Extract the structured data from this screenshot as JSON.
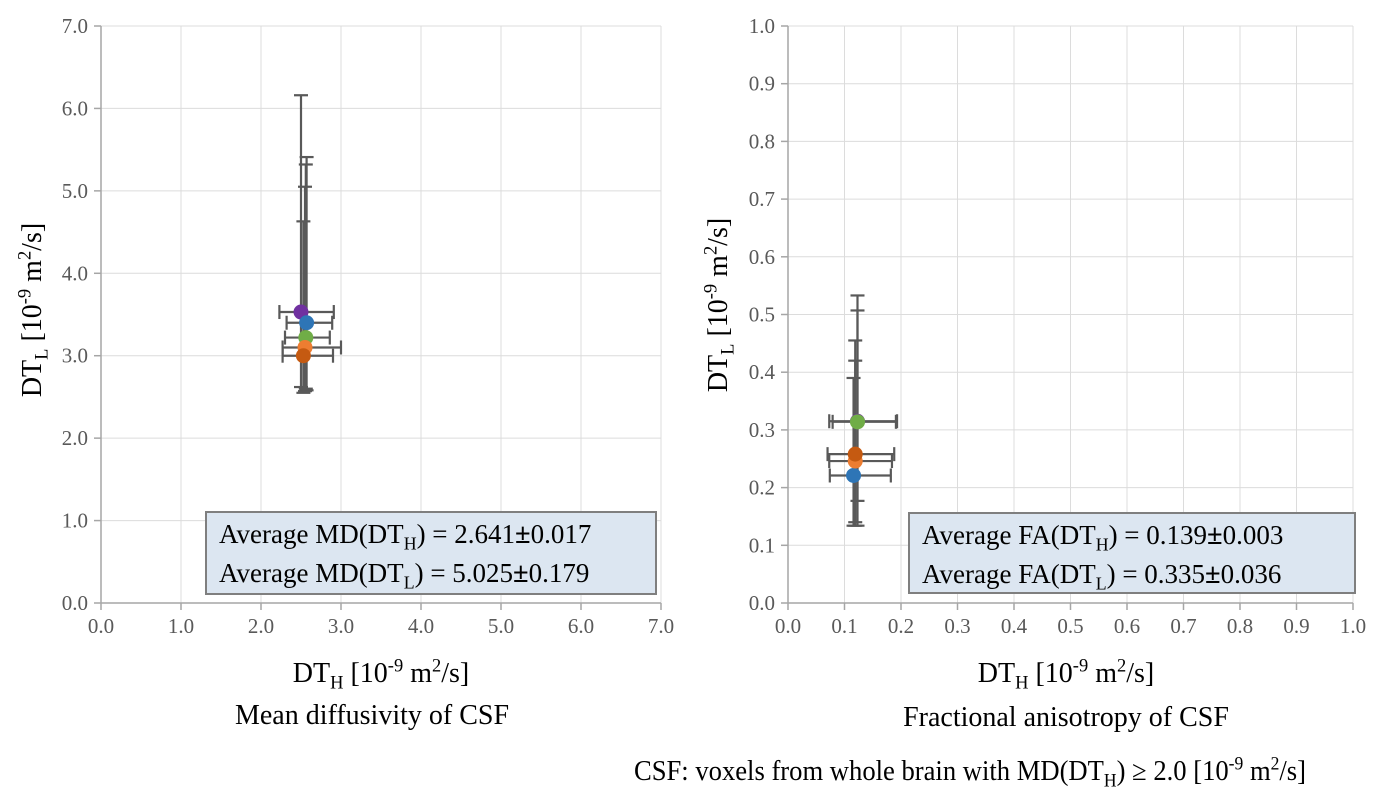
{
  "page": {
    "background": "#FFFFFF"
  },
  "caption": "CSF: voxels from whole brain with MD(DT_{H}) ≥ 2.0 [10^{-9} m^{2}/s]",
  "colors": {
    "grid": "#DCDCDC",
    "axis": "#A6A6A6",
    "tick_label": "#595959",
    "error_bar": "#595959",
    "annotation_fill": "#DCE6F1",
    "annotation_border": "#7F7F7F"
  },
  "chart_data": [
    {
      "type": "scatter",
      "title": "Mean diffusivity of CSF",
      "xlabel": "DT_{H} [10^{-9} m^{2}/s]",
      "ylabel": "DT_{L} [10^{-9} m^{2}/s]",
      "xlim": [
        0.0,
        7.0
      ],
      "ylim": [
        0.0,
        7.0
      ],
      "xticks": [
        "0.0",
        "1.0",
        "2.0",
        "3.0",
        "4.0",
        "5.0",
        "6.0",
        "7.0"
      ],
      "yticks": [
        "0.0",
        "1.0",
        "2.0",
        "3.0",
        "4.0",
        "5.0",
        "6.0",
        "7.0"
      ],
      "grid": true,
      "legend": "none",
      "series": [
        {
          "name": "purple",
          "color": "#7030A0",
          "x": 2.5,
          "y": 3.53,
          "xerr": [
            2.23,
            2.91
          ],
          "yerr": [
            2.62,
            6.16
          ]
        },
        {
          "name": "blue",
          "color": "#2E75B6",
          "x": 2.57,
          "y": 3.4,
          "xerr": [
            2.32,
            2.89
          ],
          "yerr": [
            2.58,
            5.41
          ]
        },
        {
          "name": "green",
          "color": "#70AD47",
          "x": 2.56,
          "y": 3.22,
          "xerr": [
            2.3,
            2.86
          ],
          "yerr": [
            2.6,
            5.32
          ]
        },
        {
          "name": "orange",
          "color": "#ED7D31",
          "x": 2.55,
          "y": 3.1,
          "xerr": [
            2.27,
            3.0
          ],
          "yerr": [
            2.57,
            5.05
          ]
        },
        {
          "name": "brown",
          "color": "#C55A11",
          "x": 2.53,
          "y": 3.0,
          "xerr": [
            2.27,
            2.9
          ],
          "yerr": [
            2.55,
            4.63
          ]
        }
      ],
      "annotation": {
        "lines": [
          "Average MD(DT_{H}) = 2.641±0.017",
          "Average MD(DT_{L}) = 5.025±0.179"
        ]
      }
    },
    {
      "type": "scatter",
      "title": "Fractional anisotropy of CSF",
      "xlabel": "DT_{H} [10^{-9} m^{2}/s]",
      "ylabel": "DT_{L} [10^{-9} m^{2}/s]",
      "xlim": [
        0.0,
        1.0
      ],
      "ylim": [
        0.0,
        1.0
      ],
      "xticks": [
        "0.0",
        "0.1",
        "0.2",
        "0.3",
        "0.4",
        "0.5",
        "0.6",
        "0.7",
        "0.8",
        "0.9",
        "1.0"
      ],
      "yticks": [
        "0.0",
        "0.1",
        "0.2",
        "0.3",
        "0.4",
        "0.5",
        "0.6",
        "0.7",
        "0.8",
        "0.9",
        "1.0"
      ],
      "grid": true,
      "legend": "none",
      "series": [
        {
          "name": "purple",
          "color": "#7030A0",
          "x": 0.123,
          "y": 0.315,
          "xerr": [
            0.073,
            0.193
          ],
          "yerr": [
            0.134,
            0.533
          ]
        },
        {
          "name": "blue",
          "color": "#2E75B6",
          "x": 0.116,
          "y": 0.221,
          "xerr": [
            0.074,
            0.182
          ],
          "yerr": [
            0.134,
            0.39
          ]
        },
        {
          "name": "green",
          "color": "#70AD47",
          "x": 0.123,
          "y": 0.314,
          "xerr": [
            0.079,
            0.191
          ],
          "yerr": [
            0.177,
            0.507
          ]
        },
        {
          "name": "orange",
          "color": "#ED7D31",
          "x": 0.119,
          "y": 0.246,
          "xerr": [
            0.073,
            0.184
          ],
          "yerr": [
            0.134,
            0.42
          ]
        },
        {
          "name": "brown",
          "color": "#C55A11",
          "x": 0.119,
          "y": 0.258,
          "xerr": [
            0.07,
            0.188
          ],
          "yerr": [
            0.14,
            0.455
          ]
        }
      ],
      "annotation": {
        "lines": [
          "Average FA(DT_{H}) = 0.139±0.003",
          "Average FA(DT_{L}) = 0.335±0.036"
        ]
      }
    }
  ]
}
